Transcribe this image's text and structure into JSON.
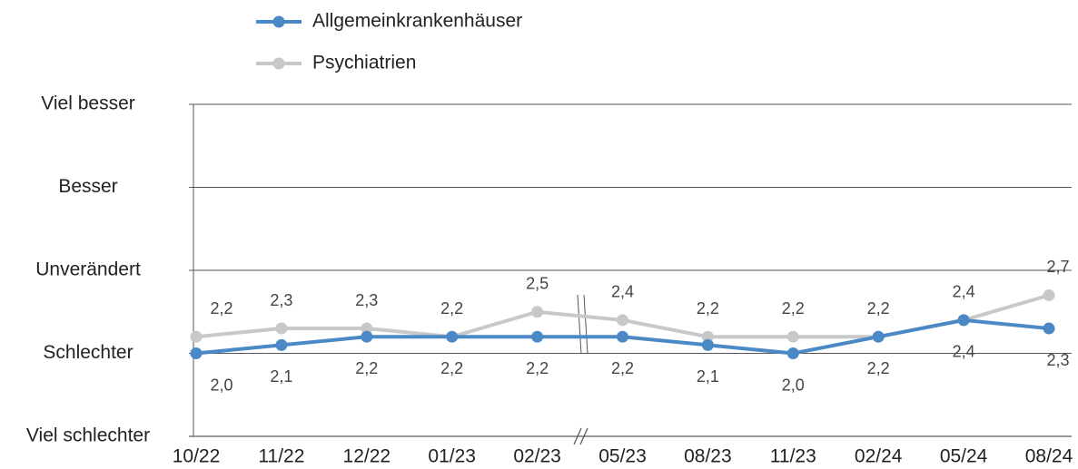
{
  "chart_data": {
    "type": "line",
    "categories": [
      "10/22",
      "11/22",
      "12/22",
      "01/23",
      "02/23",
      "05/23",
      "08/23",
      "11/23",
      "02/24",
      "05/24",
      "08/24"
    ],
    "series": [
      {
        "name": "Allgemeinkrankenhäuser",
        "color": "#4a89c6",
        "values": [
          2.0,
          2.1,
          2.2,
          2.2,
          2.2,
          2.2,
          2.1,
          2.0,
          2.2,
          2.4,
          2.3
        ],
        "value_labels": [
          "2,0",
          "2,1",
          "2,2",
          "2,2",
          "2,2",
          "2,2",
          "2,1",
          "2,0",
          "2,2",
          "2,4",
          "2,3"
        ]
      },
      {
        "name": "Psychiatrien",
        "color": "#c8c8c8",
        "values": [
          2.2,
          2.3,
          2.3,
          2.2,
          2.5,
          2.4,
          2.2,
          2.2,
          2.2,
          2.4,
          2.7
        ],
        "value_labels": [
          "2,2",
          "2,3",
          "2,3",
          "2,2",
          "2,5",
          "2,4",
          "2,2",
          "2,2",
          "2,2",
          "2,4",
          "2,7"
        ]
      }
    ],
    "ylim": [
      1,
      5
    ],
    "yticks": [
      {
        "value": 1,
        "label": "Viel schlechter"
      },
      {
        "value": 2,
        "label": "Schlechter"
      },
      {
        "value": 3,
        "label": "Unverändert"
      },
      {
        "value": 4,
        "label": "Besser"
      },
      {
        "value": 5,
        "label": "Viel besser"
      }
    ],
    "grid": true
  }
}
